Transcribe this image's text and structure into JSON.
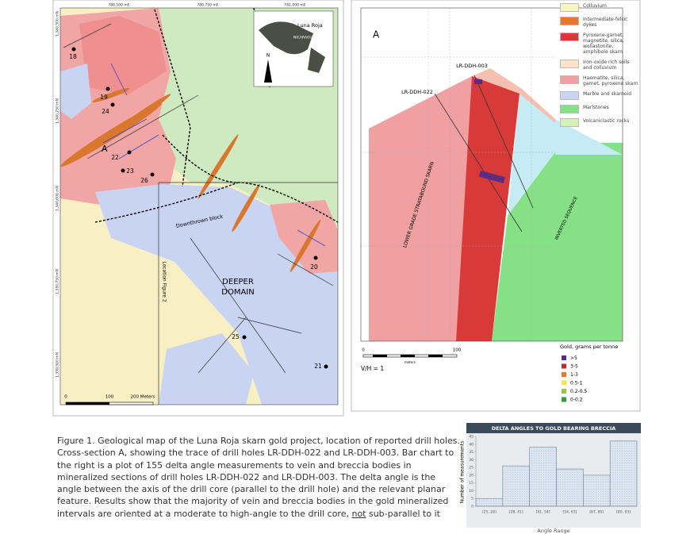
{
  "map": {
    "eastings": [
      "780,500 mE",
      "780,750 mE",
      "781,000 mE"
    ],
    "northings": [
      "1,340,500 mN",
      "1,340,250 mN",
      "1,340,000 mN",
      "1,339,750 mN",
      "1,339,500 mN"
    ],
    "drill_holes": [
      "18",
      "19",
      "24",
      "22",
      "23",
      "26",
      "20",
      "25",
      "21"
    ],
    "section_label": "A",
    "downthrown": "Downthrown block",
    "domain": [
      "DEEPER",
      "DOMAIN"
    ],
    "location": "Location Figure 2",
    "inset": {
      "title": "Luna Roja",
      "country": "NICARAGUA",
      "north": "N"
    },
    "scale": [
      "0",
      "100",
      "200 Meters"
    ]
  },
  "section": {
    "label": "A",
    "holes": [
      "LR-DDH-003",
      "LR-DDH-022"
    ],
    "zones": [
      "LOWER GRADE STRATABOUND SKARN",
      "INVERTED SEQUENCE"
    ],
    "legend": [
      {
        "label": "Colluvium",
        "color": "#fbf3c0"
      },
      {
        "label": "Intermediate-felsic dykes",
        "color": "#e8772e"
      },
      {
        "label": "Pyroxene-garnet, magnetite, silica, wollastonite, amphibole skarn",
        "color": "#d83a3a"
      },
      {
        "label": "Iron-oxide rich soils and colluvium",
        "color": "#fbe2c8"
      },
      {
        "label": "Haematite, silica, garnet, pyroxene skarn",
        "color": "#f0a0a0"
      },
      {
        "label": "Marble and skarnoid",
        "color": "#c9d6f2"
      },
      {
        "label": "Marlstones",
        "color": "#86e086"
      },
      {
        "label": "Volcaniclastic rocks",
        "color": "#d6f0b8"
      }
    ],
    "gold_title": "Gold, grams per tonne",
    "gold": [
      {
        "label": ">5",
        "color": "#5b2c83"
      },
      {
        "label": "3-5",
        "color": "#c62828"
      },
      {
        "label": "1-3",
        "color": "#e8772e"
      },
      {
        "label": "0.5-1",
        "color": "#f2e64b"
      },
      {
        "label": "0.2-0.5",
        "color": "#9bc53d"
      },
      {
        "label": "0-0.2",
        "color": "#3a9a3a"
      }
    ],
    "scale": [
      "0",
      "100",
      "meters"
    ],
    "ratio": "V/H = 1"
  },
  "caption": {
    "before": "Figure 1. Geological map of the Luna Roja skarn gold project, location of reported drill holes. Cross-section A, showing the trace of drill holes LR-DDH-022 and LR-DDH-003. Bar chart to the right is a plot of 155 delta angle measurements to vein and breccia bodies in mineralized sections of drill holes LR-DDH-022 and LR-DDH-003. The delta angle is the angle between the axis of the drill core (parallel to the drill hole) and the relevant planar feature. Results show that the majority of vein and breccia bodies in the gold mineralized intervals are oriented at a moderate to high-angle to the drill core, ",
    "emphasis": "not",
    "after": " sub-parallel to it"
  },
  "chart_data": {
    "type": "bar",
    "title": "DELTA ANGLES TO GOLD BEARING BRECCIA",
    "x_label": "Angle Range",
    "y_label": "Number of measurements",
    "categories": [
      "[25, 28]",
      "[28, 41]",
      "[41, 54]",
      "[54, 67]",
      "[67, 80]",
      "[80, 93]"
    ],
    "values": [
      5,
      26,
      38,
      24,
      20,
      42
    ],
    "color": "#dbe5f1",
    "ylim": [
      0,
      45
    ],
    "yticks": [
      0,
      5,
      10,
      15,
      20,
      25,
      30,
      35,
      40,
      45
    ],
    "grid": false
  }
}
